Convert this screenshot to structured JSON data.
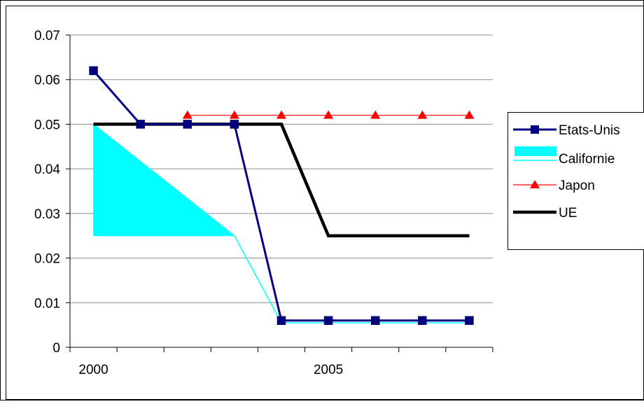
{
  "chart_data": {
    "type": "line",
    "title": "",
    "xlabel": "",
    "ylabel": "",
    "x": [
      2000,
      2001,
      2002,
      2003,
      2004,
      2005,
      2006,
      2007,
      2008
    ],
    "x_tick_labels": [
      "2000",
      "2005"
    ],
    "y_tick_labels": [
      "0",
      "0.01",
      "0.02",
      "0.03",
      "0.04",
      "0.05",
      "0.06",
      "0.07"
    ],
    "ylim": [
      0,
      0.07
    ],
    "grid": "horizontal",
    "legend_position": "right",
    "series": [
      {
        "name": "Etats-Unis",
        "color": "#000080",
        "marker": "square",
        "points": [
          [
            2000,
            0.062
          ],
          [
            2001,
            0.05
          ],
          [
            2002,
            0.05
          ],
          [
            2003,
            0.05
          ],
          [
            2004,
            0.006
          ],
          [
            2005,
            0.006
          ],
          [
            2006,
            0.006
          ],
          [
            2007,
            0.006
          ],
          [
            2008,
            0.006
          ]
        ]
      },
      {
        "name": "Californie",
        "color": "#00FFFF",
        "marker": "area",
        "points": [
          [
            2000,
            0.05
          ],
          [
            2003,
            0.025
          ],
          [
            2004,
            0.0055
          ],
          [
            2008,
            0.0055
          ]
        ],
        "band": [
          [
            2000,
            0.05
          ],
          [
            2003,
            0.025
          ],
          [
            2000,
            0.025
          ]
        ]
      },
      {
        "name": "Japon",
        "color": "#FF0000",
        "marker": "triangle",
        "points": [
          [
            2002,
            0.052
          ],
          [
            2003,
            0.052
          ],
          [
            2004,
            0.052
          ],
          [
            2005,
            0.052
          ],
          [
            2006,
            0.052
          ],
          [
            2007,
            0.052
          ],
          [
            2008,
            0.052
          ]
        ]
      },
      {
        "name": "UE",
        "color": "#000000",
        "marker": "none",
        "points": [
          [
            2000,
            0.05
          ],
          [
            2004,
            0.05
          ],
          [
            2005,
            0.025
          ],
          [
            2008,
            0.025
          ]
        ]
      }
    ]
  }
}
